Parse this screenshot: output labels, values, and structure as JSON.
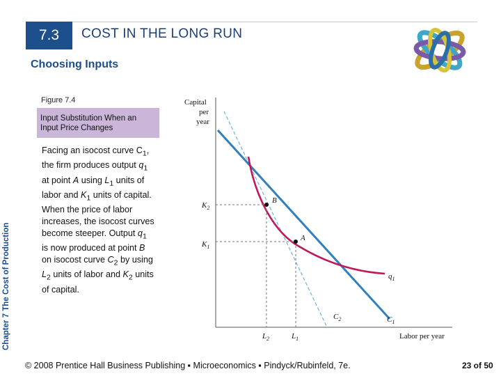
{
  "section_number": "7.3",
  "chapter_title": "COST IN THE LONG RUN",
  "subtitle": "Choosing Inputs",
  "figure_label": "Figure 7.4",
  "figure_caption": "Input Substitution When an Input Price Changes",
  "side_label": "Chapter 7 The Cost of Production",
  "body_paragraphs": [
    "Facing an isocost curve C1, the firm produces output q1 at point A using L1 units of labor and K1 units of capital.",
    "When the price of labor increases, the isocost curves become steeper. Output q1 is now produced at point B on isocost curve C2 by using L2 units of labor and K2 units of capital."
  ],
  "chart": {
    "y_axis_label": [
      "Capital",
      "per",
      "year"
    ],
    "x_axis_label": "Labor per year",
    "k_ticks": [
      "K2",
      "K1"
    ],
    "l_ticks": [
      "L2",
      "L1"
    ],
    "points": [
      "B",
      "A"
    ],
    "curve_labels": {
      "isoquant": "q1",
      "isocost_new": "C2",
      "isocost_old": "C1"
    },
    "colors": {
      "isoquant": "#c0185a",
      "isocost_old": "#2f7fc1",
      "isocost_new": "#6fb4dd"
    }
  },
  "footer": "© 2008 Prentice Hall Business Publishing ▪ Microeconomics ▪ Pindyck/Rubinfeld, 7e.",
  "page_number": "23 of 50"
}
